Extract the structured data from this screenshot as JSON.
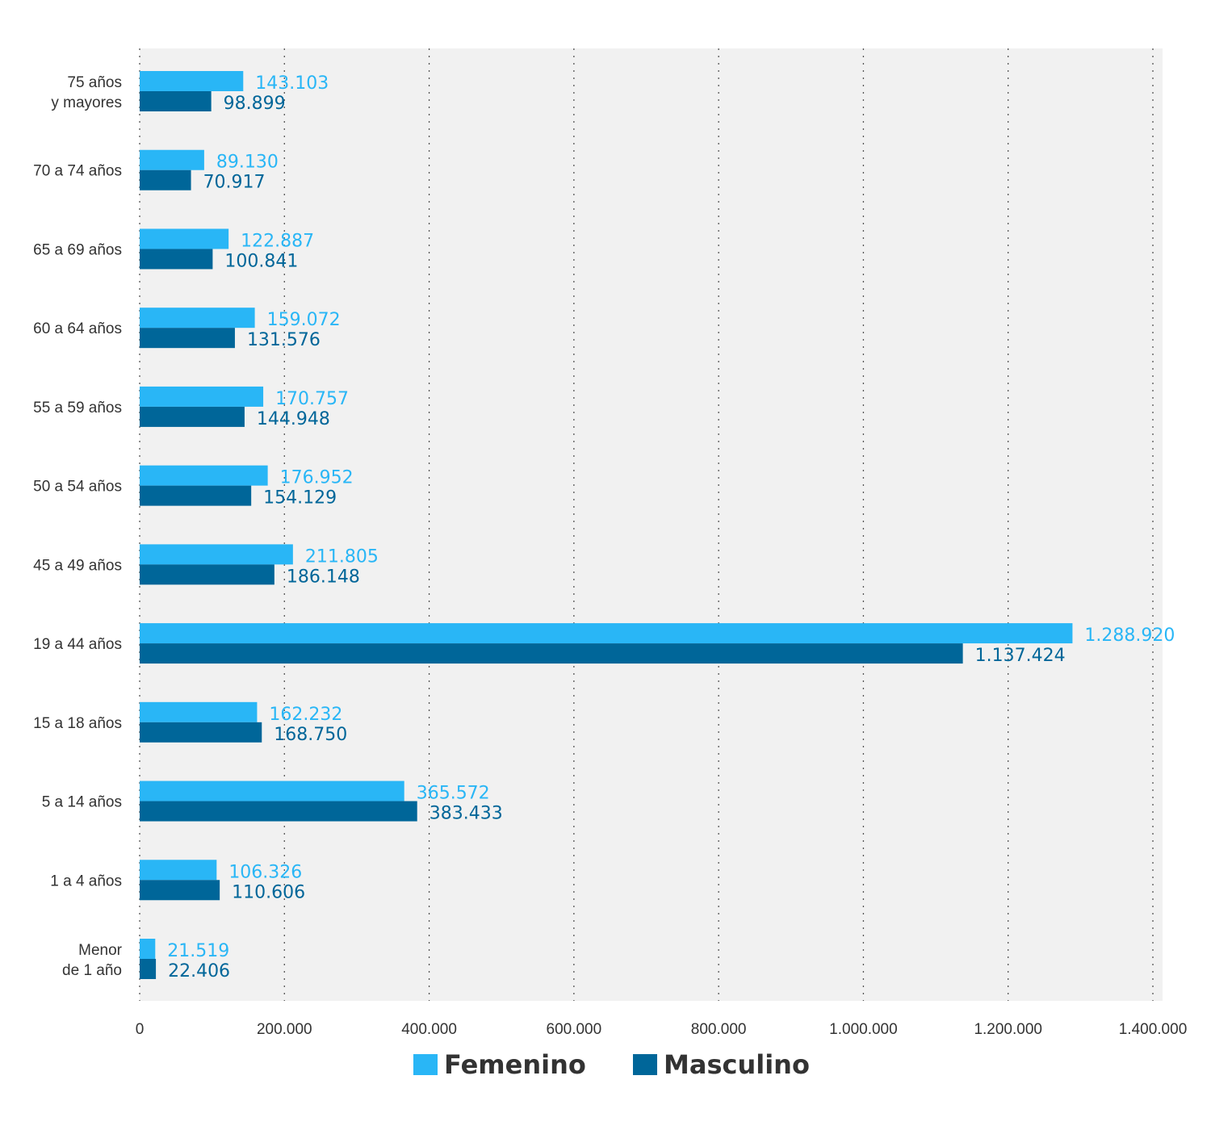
{
  "chart_data": {
    "type": "bar",
    "orientation": "horizontal",
    "categories": [
      "75 años\ny mayores",
      "70 a 74 años",
      "65 a 69 años",
      "60 a 64 años",
      "55 a 59 años",
      "50 a 54 años",
      "45 a 49 años",
      "19 a 44 años",
      "15 a 18 años",
      "5 a 14 años",
      "1 a 4 años",
      "Menor\nde 1 año"
    ],
    "series": [
      {
        "name": "Femenino",
        "color": "#29b6f6",
        "values": [
          143103,
          89130,
          122887,
          159072,
          170757,
          176952,
          211805,
          1288920,
          162232,
          365572,
          106326,
          21519
        ],
        "labels": [
          "143.103",
          "89.130",
          "122.887",
          "159.072",
          "170.757",
          "176.952",
          "211.805",
          "1.288.920",
          "162.232",
          "365.572",
          "106.326",
          "21.519"
        ]
      },
      {
        "name": "Masculino",
        "color": "#006699",
        "values": [
          98899,
          70917,
          100841,
          131576,
          144948,
          154129,
          186148,
          1137424,
          168750,
          383433,
          110606,
          22406
        ],
        "labels": [
          "98.899",
          "70.917",
          "100.841",
          "131.576",
          "144.948",
          "154.129",
          "186.148",
          "1.137.424",
          "168.750",
          "383.433",
          "110.606",
          "22.406"
        ]
      }
    ],
    "xlim": [
      0,
      1400000
    ],
    "xticks": [
      0,
      200000,
      400000,
      600000,
      800000,
      1000000,
      1200000,
      1400000
    ],
    "xtick_labels": [
      "0",
      "200.000",
      "400.000",
      "600.000",
      "800.000",
      "1.000.000",
      "1.200.000",
      "1.400.000"
    ],
    "grid": "vertical dotted",
    "legend_position": "bottom-center",
    "background_color": "#f1f1f1"
  },
  "legend": {
    "femenino_label": "Femenino",
    "masculino_label": "Masculino"
  }
}
